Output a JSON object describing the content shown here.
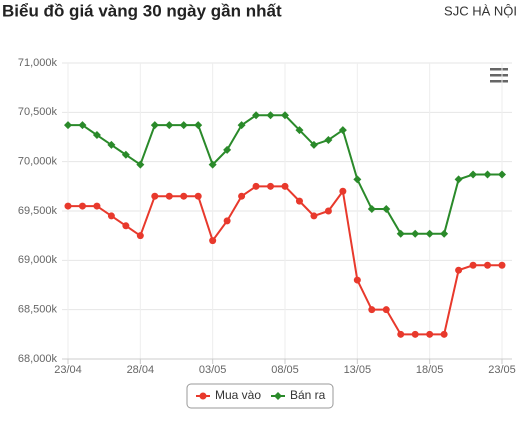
{
  "chart_data": {
    "type": "line",
    "title": "Biểu đồ giá vàng 30 ngày gần nhất",
    "subtitle": "SJC HÀ NỘI",
    "categories": [
      "23/04",
      null,
      null,
      null,
      null,
      "28/04",
      null,
      null,
      null,
      null,
      "03/05",
      null,
      null,
      null,
      null,
      "08/05",
      null,
      null,
      null,
      null,
      "13/05",
      null,
      null,
      null,
      null,
      "18/05",
      null,
      null,
      null,
      null,
      "23/05"
    ],
    "series": [
      {
        "name": "Mua vào",
        "color": "#e8392c",
        "marker": "circle",
        "values": [
          69550,
          69550,
          69550,
          69450,
          69350,
          69250,
          69650,
          69650,
          69650,
          69650,
          69200,
          69400,
          69650,
          69750,
          69750,
          69750,
          69600,
          69450,
          69500,
          69700,
          68800,
          68500,
          68500,
          68250,
          68250,
          68250,
          68250,
          68900,
          68950,
          68950,
          68950
        ]
      },
      {
        "name": "Bán ra",
        "color": "#2a8a2a",
        "marker": "diamond",
        "values": [
          70370,
          70370,
          70270,
          70170,
          70070,
          69970,
          70370,
          70370,
          70370,
          70370,
          69970,
          70120,
          70370,
          70470,
          70470,
          70470,
          70320,
          70170,
          70220,
          70320,
          69820,
          69520,
          69520,
          69270,
          69270,
          69270,
          69270,
          69820,
          69870,
          69870,
          69870
        ]
      }
    ],
    "ylim": [
      68000,
      71000
    ],
    "yticks": [
      {
        "value": 68000,
        "label": "68,000k"
      },
      {
        "value": 68500,
        "label": "68,500k"
      },
      {
        "value": 69000,
        "label": "69,000k"
      },
      {
        "value": 69500,
        "label": "69,500k"
      },
      {
        "value": 70000,
        "label": "70,000k"
      },
      {
        "value": 70500,
        "label": "70,500k"
      },
      {
        "value": 71000,
        "label": "71,000k"
      }
    ],
    "grid": true,
    "legend": "bottom"
  }
}
